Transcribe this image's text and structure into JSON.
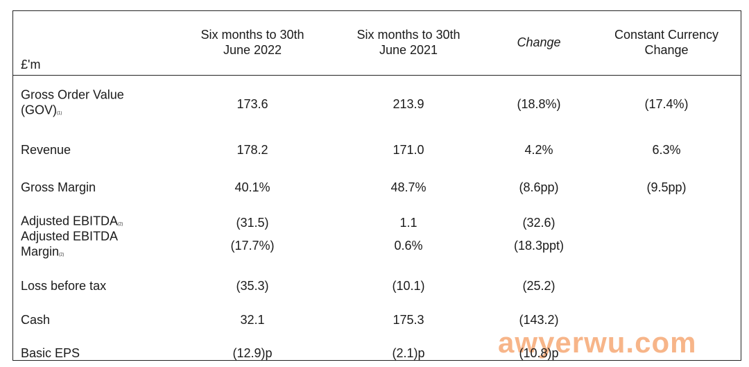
{
  "table": {
    "unit_label": "£'m",
    "headers": [
      "Six months to 30th June 2022",
      "Six months to 30th June 2021",
      "Change",
      "Constant Currency Change"
    ],
    "rows": [
      {
        "label": "Gross Order Value (GOV)",
        "note": "(1)",
        "values": [
          "173.6",
          "213.9",
          "(18.8%)",
          "(17.4%)"
        ]
      },
      {
        "label": "Revenue",
        "values": [
          "178.2",
          "171.0",
          "4.2%",
          "6.3%"
        ]
      },
      {
        "label": "Gross Margin",
        "values": [
          "40.1%",
          "48.7%",
          "(8.6pp)",
          "(9.5pp)"
        ]
      },
      {
        "label": "Adjusted EBITDA",
        "note": "(2)",
        "values": [
          "(31.5)",
          "1.1",
          "(32.6)",
          null
        ]
      },
      {
        "label": "Adjusted EBITDA Margin",
        "note": "(2)",
        "values": [
          "(17.7%)",
          "0.6%",
          "(18.3ppt)",
          null
        ]
      },
      {
        "label": "Loss before tax",
        "values": [
          "(35.3)",
          "(10.1)",
          "(25.2)",
          null
        ]
      },
      {
        "label": "Cash",
        "values": [
          "32.1",
          "175.3",
          "(143.2)",
          null
        ]
      },
      {
        "label": "Basic EPS",
        "values": [
          "(12.9)p",
          "(2.1)p",
          "(10.8)p",
          null
        ]
      }
    ]
  },
  "watermark": "awyerwu.com"
}
